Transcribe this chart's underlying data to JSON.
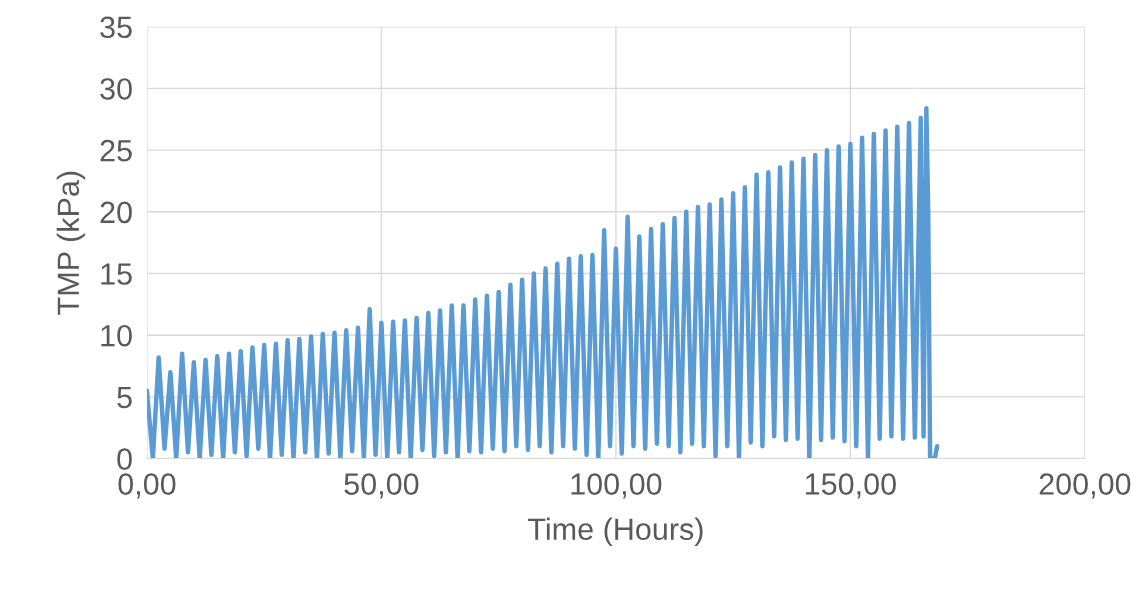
{
  "chart_data": {
    "type": "line",
    "xlabel": "Time (Hours)",
    "ylabel": "TMP (kPa)",
    "xlim": [
      0,
      200
    ],
    "xticks": [
      {
        "value": 0,
        "label": "0,00"
      },
      {
        "value": 50,
        "label": "50,00"
      },
      {
        "value": 100,
        "label": "100,00"
      },
      {
        "value": 150,
        "label": "150,00"
      },
      {
        "value": 200,
        "label": "200,00"
      }
    ],
    "ylim": [
      0,
      35
    ],
    "yticks": [
      0,
      5,
      10,
      15,
      20,
      25,
      30,
      35
    ],
    "grid": true,
    "marker": "none",
    "line_style": "solid",
    "series": [
      {
        "color": "#5b9bd5",
        "x": [
          0,
          1.25,
          2.5,
          3.75,
          5,
          6.25,
          7.5,
          8.75,
          10,
          11.25,
          12.5,
          13.75,
          15,
          16.25,
          17.5,
          18.75,
          20,
          21.25,
          22.5,
          23.75,
          25,
          26.25,
          27.5,
          28.75,
          30,
          31.25,
          32.5,
          33.75,
          35,
          36.25,
          37.5,
          38.75,
          40,
          41.25,
          42.5,
          43.75,
          45,
          46.25,
          47.5,
          48.75,
          50,
          51.25,
          52.5,
          53.75,
          55,
          56.25,
          57.5,
          58.75,
          60,
          61.25,
          62.5,
          63.75,
          65,
          66.25,
          67.5,
          68.75,
          70,
          71.25,
          72.5,
          73.75,
          75,
          76.25,
          77.5,
          78.75,
          80,
          81.25,
          82.5,
          83.75,
          85,
          86.25,
          87.5,
          88.75,
          90,
          91.25,
          92.5,
          93.75,
          95,
          96.25,
          97.5,
          98.75,
          100,
          101.25,
          102.5,
          103.75,
          105,
          106.25,
          107.5,
          108.75,
          110,
          111.25,
          112.5,
          113.75,
          115,
          116.25,
          117.5,
          118.75,
          120,
          121.25,
          122.5,
          123.75,
          125,
          126.25,
          127.5,
          128.75,
          130,
          131.25,
          132.5,
          133.75,
          135,
          136.25,
          137.5,
          138.75,
          140,
          141.25,
          142.5,
          143.75,
          145,
          146.25,
          147.5,
          148.75,
          150,
          151.25,
          152.5,
          153.75,
          155,
          156.25,
          157.5,
          158.75,
          160,
          161.25,
          162.5,
          163.75,
          165,
          165.6,
          166.2,
          166.6,
          167,
          168,
          168.5
        ],
        "values": [
          5.5,
          0,
          8.2,
          0.8,
          7.0,
          0,
          8.5,
          0.5,
          7.8,
          0,
          8.0,
          0.3,
          8.3,
          0,
          8.5,
          0.5,
          8.7,
          0.2,
          9.0,
          0.8,
          9.2,
          0,
          9.3,
          0.3,
          9.6,
          0,
          9.7,
          0.5,
          9.9,
          0,
          10.1,
          0.4,
          10.2,
          0,
          10.4,
          0.6,
          10.6,
          0,
          12.1,
          0.3,
          11.0,
          0,
          11.1,
          0.5,
          11.2,
          0,
          11.4,
          0.7,
          11.8,
          0.2,
          12.0,
          0.5,
          12.4,
          0,
          12.4,
          0.6,
          12.9,
          0.5,
          13.2,
          0.8,
          13.5,
          0.6,
          14.1,
          1.0,
          14.5,
          0.7,
          15.0,
          1.0,
          15.4,
          0.5,
          15.8,
          1.0,
          16.2,
          0.8,
          16.4,
          0.3,
          16.5,
          0,
          18.5,
          1.0,
          17.0,
          0.4,
          19.6,
          1.0,
          18.0,
          0.8,
          18.6,
          1.2,
          19.0,
          1.0,
          19.5,
          0.5,
          20.0,
          1.2,
          20.4,
          1.0,
          20.6,
          0.2,
          21.0,
          1.0,
          21.5,
          0,
          22.0,
          1.3,
          23.0,
          1.0,
          23.2,
          1.8,
          23.6,
          1.5,
          24.0,
          1.6,
          24.3,
          0,
          24.6,
          1.5,
          25.0,
          1.7,
          25.3,
          1.4,
          25.5,
          1.0,
          26.0,
          0,
          26.3,
          1.6,
          26.6,
          1.8,
          26.9,
          1.6,
          27.2,
          1.7,
          27.6,
          1.8,
          28.4,
          20,
          0,
          0,
          1.0
        ]
      }
    ]
  }
}
